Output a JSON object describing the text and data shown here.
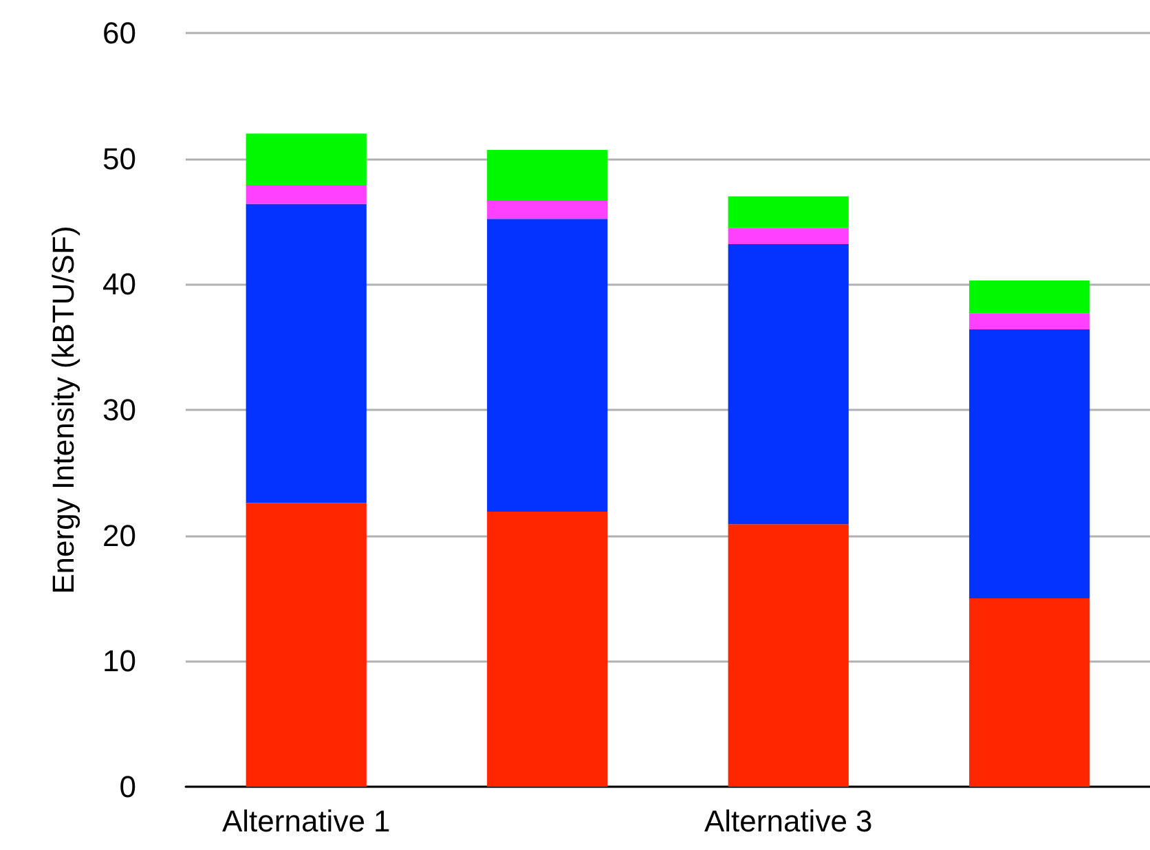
{
  "chart_data": {
    "type": "bar",
    "stacked": true,
    "ylabel": "Energy Intensity (kBTU/SF)",
    "categories": [
      "Alternative 1",
      null,
      "Alternative 3",
      null
    ],
    "series": [
      {
        "color": "#ff2600",
        "values": [
          22.6,
          21.9,
          20.9,
          15.0
        ]
      },
      {
        "color": "#0433ff",
        "values": [
          23.8,
          23.3,
          22.3,
          21.4
        ]
      },
      {
        "color": "#ff40ff",
        "values": [
          1.5,
          1.5,
          1.3,
          1.3
        ]
      },
      {
        "color": "#00f900",
        "values": [
          4.1,
          4.0,
          2.5,
          2.6
        ]
      }
    ],
    "ylim": [
      0,
      60
    ],
    "yticks": [
      0,
      10,
      20,
      30,
      40,
      50,
      60
    ],
    "grid": "y"
  }
}
